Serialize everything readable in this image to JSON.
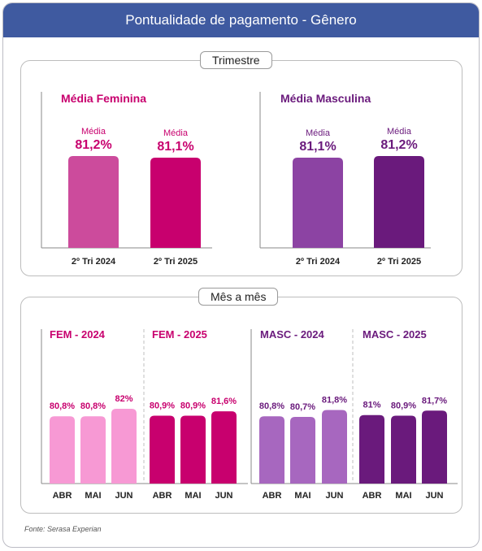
{
  "header": {
    "title": "Pontualidade de pagamento - Gênero"
  },
  "trimestre": {
    "title": "Trimestre"
  },
  "mensal": {
    "title": "Mês a mês"
  },
  "source": "Fonte: Serasa Experian",
  "colors": {
    "fem_2024_quarter": "#cc4b9c",
    "fem_2025_quarter": "#c8006e",
    "masc_2024_quarter": "#8c43a3",
    "masc_2025_quarter": "#6a1a7c",
    "fem_2024_month": "#f799d4",
    "fem_2025_month": "#c8006e",
    "masc_2024_month": "#a767bf",
    "masc_2025_month": "#6a1a7c",
    "fem_text": "#c8006e",
    "masc_text": "#6a1a7c"
  },
  "chart_data": [
    {
      "type": "bar",
      "title": "Média Feminina",
      "value_prefix": "Média",
      "categories": [
        "2º Tri 2024",
        "2º Tri 2025"
      ],
      "values": [
        81.2,
        81.1
      ],
      "value_labels": [
        "81,2%",
        "81,1%"
      ]
    },
    {
      "type": "bar",
      "title": "Média Masculina",
      "value_prefix": "Média",
      "categories": [
        "2º Tri 2024",
        "2º Tri 2025"
      ],
      "values": [
        81.1,
        81.2
      ],
      "value_labels": [
        "81,1%",
        "81,2%"
      ]
    },
    {
      "type": "bar",
      "groups": [
        {
          "title": "FEM - 2024",
          "categories": [
            "ABR",
            "MAI",
            "JUN"
          ],
          "values": [
            80.8,
            80.8,
            82.0
          ],
          "value_labels": [
            "80,8%",
            "80,8%",
            "82%"
          ]
        },
        {
          "title": "FEM - 2025",
          "categories": [
            "ABR",
            "MAI",
            "JUN"
          ],
          "values": [
            80.9,
            80.9,
            81.6
          ],
          "value_labels": [
            "80,9%",
            "80,9%",
            "81,6%"
          ]
        }
      ]
    },
    {
      "type": "bar",
      "groups": [
        {
          "title": "MASC - 2024",
          "categories": [
            "ABR",
            "MAI",
            "JUN"
          ],
          "values": [
            80.8,
            80.7,
            81.8
          ],
          "value_labels": [
            "80,8%",
            "80,7%",
            "81,8%"
          ]
        },
        {
          "title": "MASC - 2025",
          "categories": [
            "ABR",
            "MAI",
            "JUN"
          ],
          "values": [
            81.0,
            80.9,
            81.7
          ],
          "value_labels": [
            "81%",
            "80,9%",
            "81,7%"
          ]
        }
      ]
    }
  ]
}
